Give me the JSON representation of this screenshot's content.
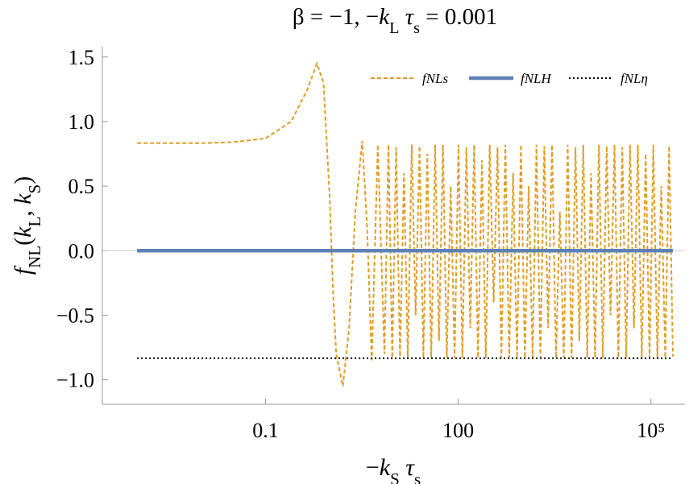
{
  "chart_data": {
    "type": "line",
    "title": [
      {
        "text": "β = −1,   −"
      },
      {
        "text": "k",
        "italic": true
      },
      {
        "text": "L",
        "sub": true
      },
      {
        "text": " τ",
        "italic": true
      },
      {
        "text": "s",
        "sub": true
      },
      {
        "text": " = 0.001"
      }
    ],
    "xlabel": [
      {
        "text": "−"
      },
      {
        "text": "k",
        "italic": true
      },
      {
        "text": "S",
        "sub": true
      },
      {
        "text": " τ",
        "italic": true
      },
      {
        "text": "s",
        "sub": true
      }
    ],
    "ylabel": [
      {
        "text": "f",
        "italic": true
      },
      {
        "text": "NL",
        "sub": true
      },
      {
        "text": "("
      },
      {
        "text": "k",
        "italic": true
      },
      {
        "text": "L",
        "sub": true
      },
      {
        "text": ", "
      },
      {
        "text": "k",
        "italic": true
      },
      {
        "text": "S",
        "sub": true
      },
      {
        "text": ")"
      }
    ],
    "xscale": "log",
    "xlim": [
      0.000288,
      339000
    ],
    "ylim": [
      -1.19,
      1.58
    ],
    "xticks": [
      0.1,
      100,
      {
        "value": 100000,
        "label": "10⁵"
      }
    ],
    "yticks": [
      {
        "value": 1.5,
        "label": "1.5"
      },
      {
        "value": 1.0,
        "label": "1.0"
      },
      {
        "value": 0.5,
        "label": "0.5"
      },
      {
        "value": 0.0,
        "label": "0.0"
      },
      {
        "value": -0.5,
        "label": "−0.5"
      },
      {
        "value": -1.0,
        "label": "−1.0"
      }
    ],
    "legend_position": "upper right",
    "series": [
      {
        "name": "fNLs",
        "color": "#e19c24",
        "dash": "dashed",
        "x": [
          0.001,
          0.01,
          0.03,
          0.1,
          0.25,
          0.45,
          0.63,
          0.8,
          1,
          1.12,
          1.26,
          1.6,
          2,
          2.5,
          3.2,
          3.8,
          4.5,
          5.6,
          7.1,
          8.2,
          9.4,
          10.8,
          12.4,
          14.3,
          16.4,
          18.9,
          21.7,
          25,
          28.7,
          33,
          38,
          43.7,
          50.2,
          57.8,
          66.4,
          76.4,
          87.8,
          101,
          116,
          134,
          154,
          177,
          203,
          234,
          269,
          309,
          356,
          409,
          470,
          541,
          622,
          715,
          823,
          946,
          1090,
          1250,
          1440,
          1650,
          1900,
          2190,
          2510,
          2890,
          3330,
          3820,
          4400,
          5060,
          5820,
          6690,
          7690,
          8850,
          10200,
          11700,
          13500,
          15500,
          17800,
          20500,
          23500,
          27100,
          31100,
          35800,
          41200,
          47300,
          54400,
          62600,
          72000,
          82800,
          95200,
          109000,
          126000,
          145000,
          167000,
          192000,
          220000
        ],
        "values": [
          0.833,
          0.833,
          0.84,
          0.87,
          1.0,
          1.25,
          1.45,
          1.3,
          0.4,
          -0.3,
          -0.8,
          -1.05,
          -0.6,
          0.3,
          0.85,
          0.2,
          -0.85,
          0.82,
          -0.8,
          0.82,
          -0.83,
          0.8,
          -0.82,
          0.6,
          -0.83,
          0.82,
          -0.5,
          0.81,
          -0.83,
          0.75,
          -0.83,
          0.82,
          -0.7,
          0.82,
          -0.83,
          0.5,
          -0.83,
          0.82,
          -0.83,
          0.8,
          -0.6,
          0.82,
          -0.83,
          0.7,
          -0.83,
          0.82,
          -0.4,
          0.8,
          -0.83,
          0.82,
          -0.83,
          0.6,
          -0.83,
          0.82,
          -0.83,
          0.5,
          -0.83,
          0.82,
          -0.83,
          0.81,
          -0.6,
          0.82,
          -0.83,
          0.3,
          -0.83,
          0.82,
          -0.83,
          0.8,
          -0.7,
          0.82,
          -0.83,
          0.6,
          -0.83,
          0.82,
          -0.83,
          0.81,
          -0.5,
          0.82,
          -0.83,
          0.8,
          -0.83,
          0.82,
          -0.6,
          0.82,
          -0.83,
          0.75,
          -0.83,
          0.82,
          -0.83,
          0.5,
          -0.83,
          0.81,
          -0.82
        ]
      },
      {
        "name": "fNLH",
        "color": "#5e81b5",
        "dash": "solid",
        "x": [
          0.001,
          220000
        ],
        "values": [
          0,
          0
        ]
      },
      {
        "name": "fNLη",
        "color": "#000000",
        "dash": "dotted",
        "x": [
          0.001,
          220000
        ],
        "values": [
          -0.833,
          -0.833
        ]
      }
    ]
  }
}
